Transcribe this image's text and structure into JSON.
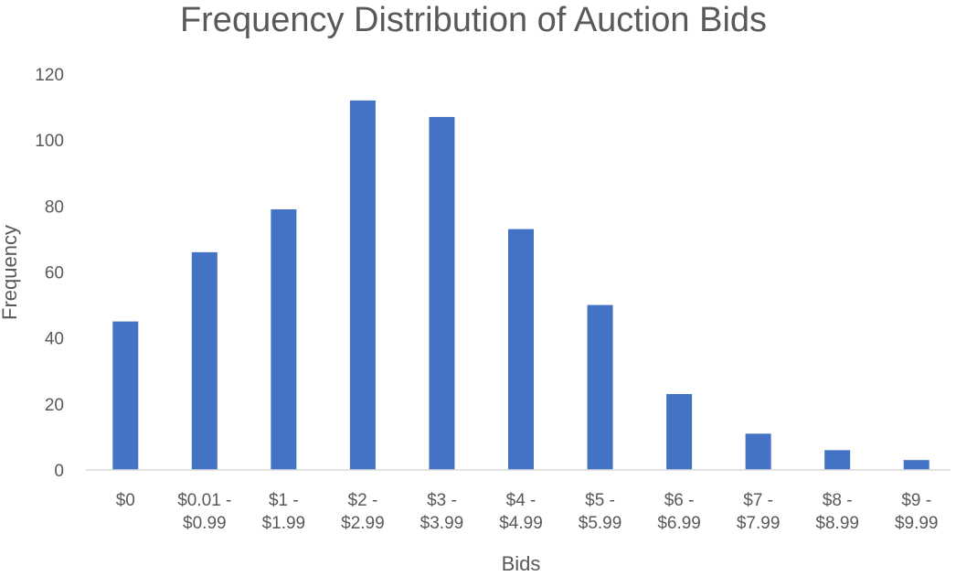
{
  "chart_data": {
    "type": "bar",
    "title": "Frequency Distribution of Auction Bids",
    "xlabel": "Bids",
    "ylabel": "Frequency",
    "categories": [
      "$0",
      "$0.01 - $0.99",
      "$1 - $1.99",
      "$2 - $2.99",
      "$3 - $3.99",
      "$4 - $4.99",
      "$5 - $5.99",
      "$6 - $6.99",
      "$7 - $7.99",
      "$8 - $8.99",
      "$9 - $9.99"
    ],
    "category_lines": [
      [
        "$0"
      ],
      [
        "$0.01 -",
        "$0.99"
      ],
      [
        "$1 -",
        "$1.99"
      ],
      [
        "$2 -",
        "$2.99"
      ],
      [
        "$3 -",
        "$3.99"
      ],
      [
        "$4 -",
        "$4.99"
      ],
      [
        "$5 -",
        "$5.99"
      ],
      [
        "$6 -",
        "$6.99"
      ],
      [
        "$7 -",
        "$7.99"
      ],
      [
        "$8 -",
        "$8.99"
      ],
      [
        "$9 -",
        "$9.99"
      ]
    ],
    "values": [
      45,
      66,
      79,
      112,
      107,
      73,
      50,
      23,
      11,
      6,
      3
    ],
    "ylim": [
      0,
      120
    ],
    "yticks": [
      0,
      20,
      40,
      60,
      80,
      100,
      120
    ],
    "grid": false,
    "legend": "none",
    "bar_color": "#4472C4",
    "text_color": "#595959",
    "axis_color": "#d9d9d9"
  }
}
